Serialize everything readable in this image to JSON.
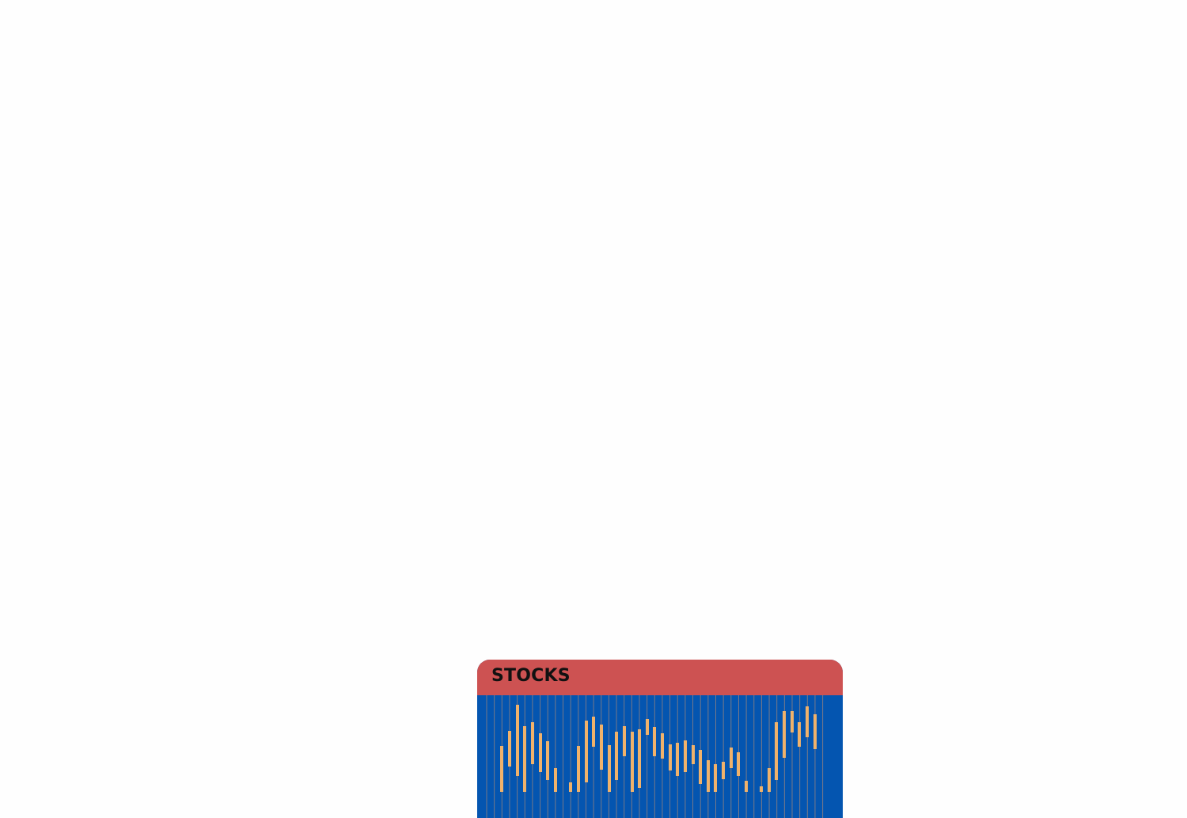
{
  "widget": {
    "title": "STOCKS"
  }
}
